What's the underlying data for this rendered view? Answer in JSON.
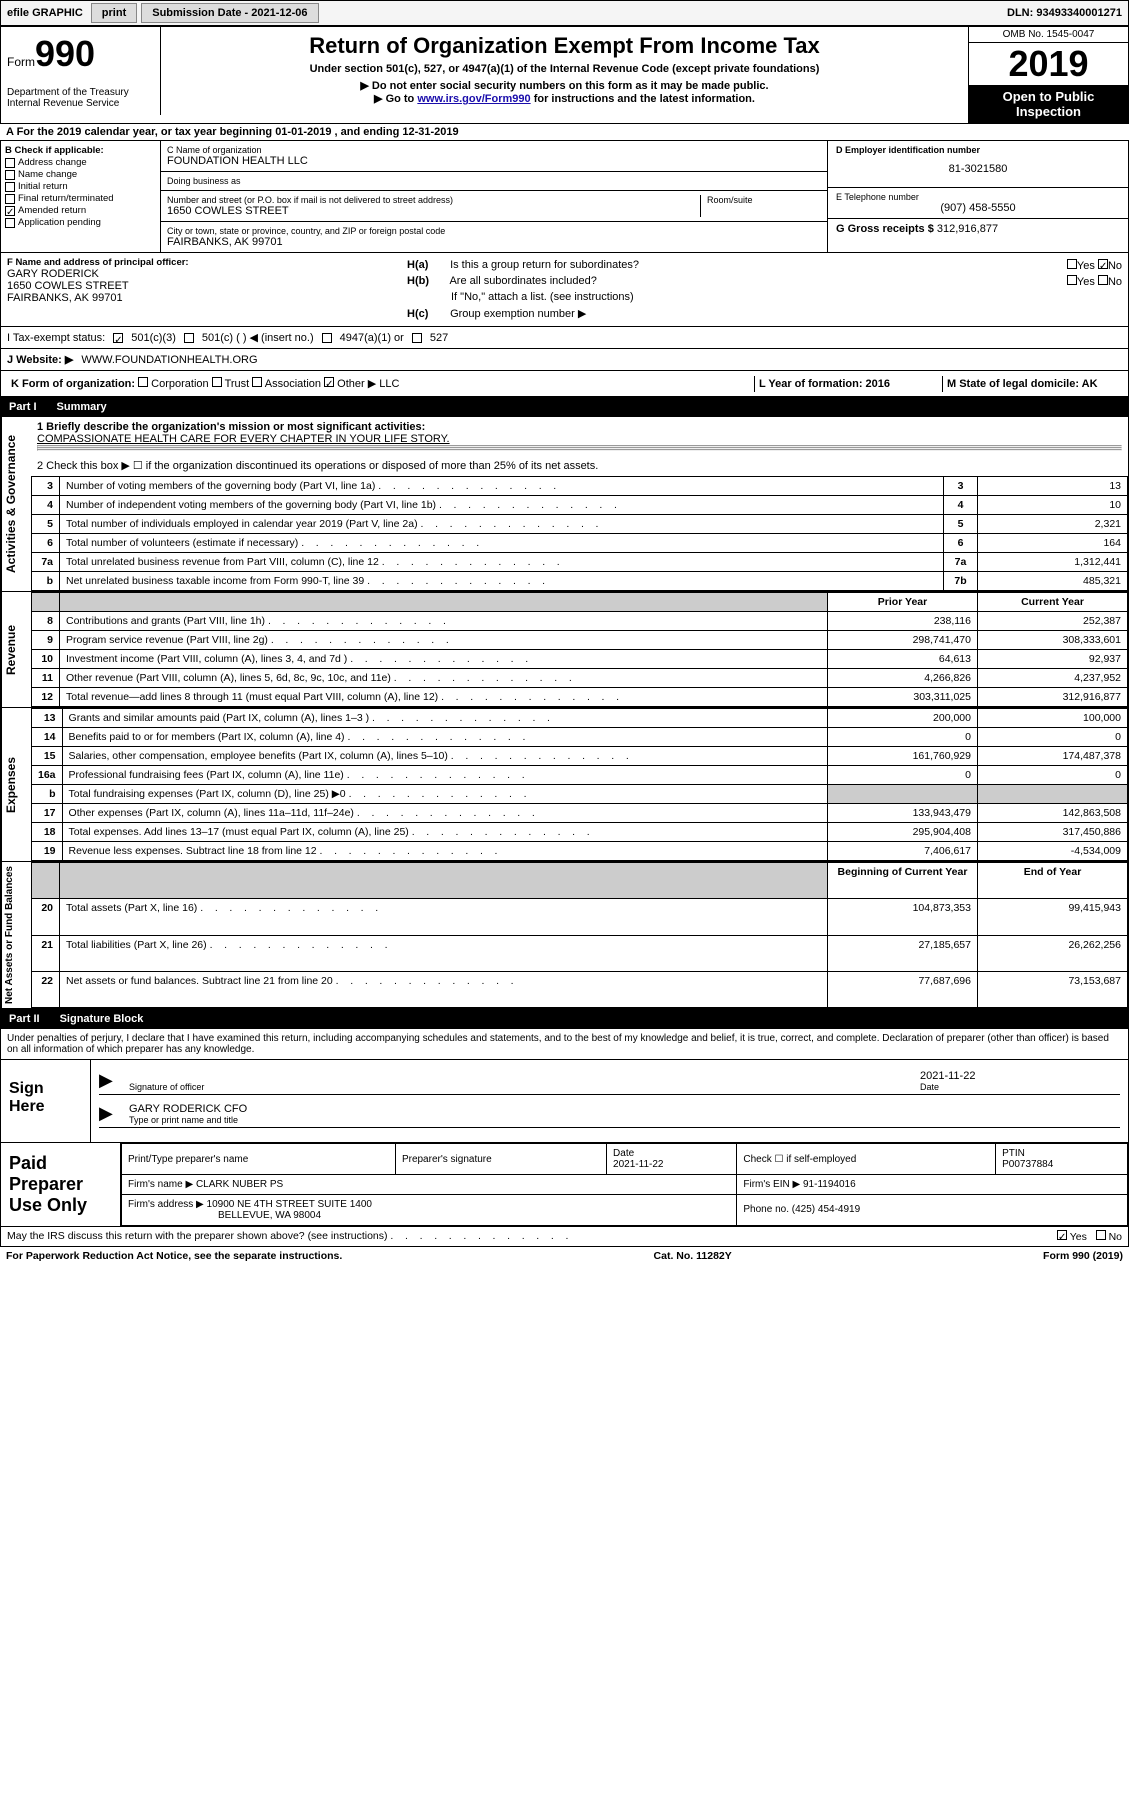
{
  "topbar": {
    "efile": "efile GRAPHIC",
    "print": "print",
    "sub_label": "Submission Date - 2021-12-06",
    "dln": "DLN: 93493340001271"
  },
  "header": {
    "form_word": "Form",
    "form_num": "990",
    "dept": "Department of the Treasury\nInternal Revenue Service",
    "title": "Return of Organization Exempt From Income Tax",
    "subtitle": "Under section 501(c), 527, or 4947(a)(1) of the Internal Revenue Code (except private foundations)",
    "arrow1": "▶ Do not enter social security numbers on this form as it may be made public.",
    "arrow2_pre": "▶ Go to ",
    "arrow2_link": "www.irs.gov/Form990",
    "arrow2_post": " for instructions and the latest information.",
    "omb": "OMB No. 1545-0047",
    "year": "2019",
    "inspection": "Open to Public Inspection"
  },
  "period": "A For the 2019 calendar year, or tax year beginning 01-01-2019   , and ending 12-31-2019",
  "section_b": {
    "hdr": "B Check if applicable:",
    "items": [
      {
        "label": "Address change",
        "checked": false
      },
      {
        "label": "Name change",
        "checked": false
      },
      {
        "label": "Initial return",
        "checked": false
      },
      {
        "label": "Final return/terminated",
        "checked": false
      },
      {
        "label": "Amended return",
        "checked": true
      },
      {
        "label": "Application pending",
        "checked": false
      }
    ]
  },
  "section_c": {
    "name_label": "C Name of organization",
    "name": "FOUNDATION HEALTH LLC",
    "dba_label": "Doing business as",
    "dba": "",
    "addr_label": "Number and street (or P.O. box if mail is not delivered to street address)",
    "room_label": "Room/suite",
    "addr": "1650 COWLES STREET",
    "city_label": "City or town, state or province, country, and ZIP or foreign postal code",
    "city": "FAIRBANKS, AK  99701"
  },
  "section_d": {
    "ein_label": "D Employer identification number",
    "ein": "81-3021580",
    "phone_label": "E Telephone number",
    "phone": "(907) 458-5550",
    "gross_label": "G Gross receipts $",
    "gross": "312,916,877"
  },
  "section_f": {
    "label": "F Name and address of principal officer:",
    "name": "GARY RODERICK",
    "addr1": "1650 COWLES STREET",
    "addr2": "FAIRBANKS, AK  99701"
  },
  "section_h": {
    "a": "Is this a group return for subordinates?",
    "a_yes": "Yes",
    "a_no": "No",
    "b": "Are all subordinates included?",
    "b_note": "If \"No,\" attach a list. (see instructions)",
    "c": "Group exemption number ▶"
  },
  "status_row": {
    "label": "I   Tax-exempt status:",
    "opts": [
      "501(c)(3)",
      "501(c) (  ) ◀ (insert no.)",
      "4947(a)(1) or",
      "527"
    ]
  },
  "website": {
    "label": "J   Website: ▶",
    "val": "WWW.FOUNDATIONHEALTH.ORG"
  },
  "k_row": {
    "label": "K Form of organization:",
    "opts": [
      "Corporation",
      "Trust",
      "Association",
      "Other ▶"
    ],
    "other_val": "LLC",
    "l": "L Year of formation: 2016",
    "m": "M State of legal domicile: AK"
  },
  "part1": {
    "title": "Part I",
    "name": "Summary",
    "line1_label": "1   Briefly describe the organization's mission or most significant activities:",
    "line1_val": "COMPASSIONATE HEALTH CARE FOR EVERY CHAPTER IN YOUR LIFE STORY.",
    "line2": "2   Check this box ▶ ☐  if the organization discontinued its operations or disposed of more than 25% of its net assets.",
    "gov_label": "Activities & Governance",
    "rev_label": "Revenue",
    "exp_label": "Expenses",
    "net_label": "Net Assets or Fund Balances",
    "gov_lines": [
      {
        "n": "3",
        "d": "Number of voting members of the governing body (Part VI, line 1a)",
        "box": "3",
        "v": "13"
      },
      {
        "n": "4",
        "d": "Number of independent voting members of the governing body (Part VI, line 1b)",
        "box": "4",
        "v": "10"
      },
      {
        "n": "5",
        "d": "Total number of individuals employed in calendar year 2019 (Part V, line 2a)",
        "box": "5",
        "v": "2,321"
      },
      {
        "n": "6",
        "d": "Total number of volunteers (estimate if necessary)",
        "box": "6",
        "v": "164"
      },
      {
        "n": "7a",
        "d": "Total unrelated business revenue from Part VIII, column (C), line 12",
        "box": "7a",
        "v": "1,312,441"
      },
      {
        "n": "b",
        "d": "Net unrelated business taxable income from Form 990-T, line 39",
        "box": "7b",
        "v": "485,321"
      }
    ],
    "col_prior": "Prior Year",
    "col_current": "Current Year",
    "rev_lines": [
      {
        "n": "8",
        "d": "Contributions and grants (Part VIII, line 1h)",
        "p": "238,116",
        "c": "252,387"
      },
      {
        "n": "9",
        "d": "Program service revenue (Part VIII, line 2g)",
        "p": "298,741,470",
        "c": "308,333,601"
      },
      {
        "n": "10",
        "d": "Investment income (Part VIII, column (A), lines 3, 4, and 7d )",
        "p": "64,613",
        "c": "92,937"
      },
      {
        "n": "11",
        "d": "Other revenue (Part VIII, column (A), lines 5, 6d, 8c, 9c, 10c, and 11e)",
        "p": "4,266,826",
        "c": "4,237,952"
      },
      {
        "n": "12",
        "d": "Total revenue—add lines 8 through 11 (must equal Part VIII, column (A), line 12)",
        "p": "303,311,025",
        "c": "312,916,877"
      }
    ],
    "exp_lines": [
      {
        "n": "13",
        "d": "Grants and similar amounts paid (Part IX, column (A), lines 1–3 )",
        "p": "200,000",
        "c": "100,000"
      },
      {
        "n": "14",
        "d": "Benefits paid to or for members (Part IX, column (A), line 4)",
        "p": "0",
        "c": "0"
      },
      {
        "n": "15",
        "d": "Salaries, other compensation, employee benefits (Part IX, column (A), lines 5–10)",
        "p": "161,760,929",
        "c": "174,487,378"
      },
      {
        "n": "16a",
        "d": "Professional fundraising fees (Part IX, column (A), line 11e)",
        "p": "0",
        "c": "0"
      },
      {
        "n": "b",
        "d": "Total fundraising expenses (Part IX, column (D), line 25) ▶0",
        "p": "",
        "c": "",
        "shade": true
      },
      {
        "n": "17",
        "d": "Other expenses (Part IX, column (A), lines 11a–11d, 11f–24e)",
        "p": "133,943,479",
        "c": "142,863,508"
      },
      {
        "n": "18",
        "d": "Total expenses. Add lines 13–17 (must equal Part IX, column (A), line 25)",
        "p": "295,904,408",
        "c": "317,450,886"
      },
      {
        "n": "19",
        "d": "Revenue less expenses. Subtract line 18 from line 12",
        "p": "7,406,617",
        "c": "-4,534,009"
      }
    ],
    "col_begin": "Beginning of Current Year",
    "col_end": "End of Year",
    "net_lines": [
      {
        "n": "20",
        "d": "Total assets (Part X, line 16)",
        "p": "104,873,353",
        "c": "99,415,943"
      },
      {
        "n": "21",
        "d": "Total liabilities (Part X, line 26)",
        "p": "27,185,657",
        "c": "26,262,256"
      },
      {
        "n": "22",
        "d": "Net assets or fund balances. Subtract line 21 from line 20",
        "p": "77,687,696",
        "c": "73,153,687"
      }
    ]
  },
  "part2": {
    "title": "Part II",
    "name": "Signature Block",
    "perjury": "Under penalties of perjury, I declare that I have examined this return, including accompanying schedules and statements, and to the best of my knowledge and belief, it is true, correct, and complete. Declaration of preparer (other than officer) is based on all information of which preparer has any knowledge.",
    "sign_here": "Sign Here",
    "sig_officer": "Signature of officer",
    "sig_date_label": "Date",
    "sig_date": "2021-11-22",
    "officer_name": "GARY RODERICK CFO",
    "officer_caption": "Type or print name and title",
    "paid_label": "Paid Preparer Use Only",
    "prep_name_label": "Print/Type preparer's name",
    "prep_sig_label": "Preparer's signature",
    "prep_date_label": "Date",
    "prep_date": "2021-11-22",
    "prep_check": "Check ☐ if self-employed",
    "ptin_label": "PTIN",
    "ptin": "P00737884",
    "firm_name_label": "Firm's name    ▶",
    "firm_name": "CLARK NUBER PS",
    "firm_ein_label": "Firm's EIN ▶",
    "firm_ein": "91-1194016",
    "firm_addr_label": "Firm's address ▶",
    "firm_addr1": "10900 NE 4TH STREET SUITE 1400",
    "firm_addr2": "BELLEVUE, WA  98004",
    "firm_phone_label": "Phone no.",
    "firm_phone": "(425) 454-4919",
    "discuss": "May the IRS discuss this return with the preparer shown above? (see instructions)",
    "yes": "Yes",
    "no": "No"
  },
  "footer": {
    "paperwork": "For Paperwork Reduction Act Notice, see the separate instructions.",
    "cat": "Cat. No. 11282Y",
    "form": "Form 990 (2019)"
  }
}
